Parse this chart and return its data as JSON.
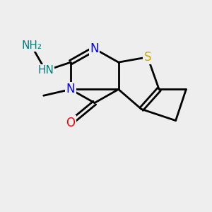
{
  "bg_color": "#eeeeee",
  "atom_colors": {
    "C": "#000000",
    "N": "#0000ff",
    "O": "#ff0000",
    "S": "#ccaa00",
    "H": "#008080"
  },
  "bond_color": "#000000",
  "bond_width": 2.0
}
